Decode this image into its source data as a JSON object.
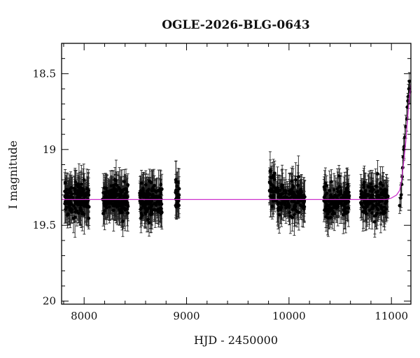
{
  "chart_data": {
    "type": "scatter",
    "title": "OGLE-2026-BLG-0643",
    "xlabel": "HJD - 2450000",
    "ylabel": "I magnitude",
    "xlim": [
      7780,
      11190
    ],
    "ylim": [
      20.02,
      18.3
    ],
    "y_inverted": true,
    "grid": false,
    "x_ticks": [
      8000,
      9000,
      10000,
      11000
    ],
    "x_tick_labels": [
      "8000",
      "9000",
      "10000",
      "11000"
    ],
    "y_ticks": [
      18.5,
      19,
      19.5,
      20
    ],
    "y_tick_labels": [
      "18.5",
      "19",
      "19.5",
      "20"
    ],
    "colors": {
      "points": "#000000",
      "model": "#cc33cc"
    },
    "seasons": [
      {
        "x_range": [
          7810,
          8050
        ],
        "center_mag": 19.33,
        "approx_points": 160
      },
      {
        "x_range": [
          8180,
          8430
        ],
        "center_mag": 19.32,
        "approx_points": 160
      },
      {
        "x_range": [
          8540,
          8760
        ],
        "center_mag": 19.33,
        "approx_points": 140
      },
      {
        "x_range": [
          8890,
          8930
        ],
        "center_mag": 19.33,
        "approx_points": 25
      },
      {
        "x_range": [
          9810,
          9870
        ],
        "center_mag": 19.25,
        "approx_points": 40
      },
      {
        "x_range": [
          9880,
          10160
        ],
        "center_mag": 19.33,
        "approx_points": 140
      },
      {
        "x_range": [
          10340,
          10590
        ],
        "center_mag": 19.34,
        "approx_points": 130
      },
      {
        "x_range": [
          10700,
          10970
        ],
        "center_mag": 19.33,
        "approx_points": 150
      }
    ],
    "rising_points": [
      {
        "x": 11080,
        "y": 19.37
      },
      {
        "x": 11090,
        "y": 19.32
      },
      {
        "x": 11095,
        "y": 19.3
      },
      {
        "x": 11100,
        "y": 19.23
      },
      {
        "x": 11105,
        "y": 19.18
      },
      {
        "x": 11110,
        "y": 19.12
      },
      {
        "x": 11115,
        "y": 19.05
      },
      {
        "x": 11120,
        "y": 19.0
      },
      {
        "x": 11125,
        "y": 18.98
      },
      {
        "x": 11130,
        "y": 18.92
      },
      {
        "x": 11140,
        "y": 18.85
      },
      {
        "x": 11150,
        "y": 18.8
      },
      {
        "x": 11155,
        "y": 18.72
      },
      {
        "x": 11160,
        "y": 18.68
      },
      {
        "x": 11165,
        "y": 18.65
      },
      {
        "x": 11170,
        "y": 18.6
      },
      {
        "x": 11175,
        "y": 18.55
      },
      {
        "x": 11180,
        "y": 18.62
      }
    ],
    "model_curve": {
      "baseline_mag": 19.33,
      "points": [
        {
          "x": 7780,
          "y": 19.33
        },
        {
          "x": 10950,
          "y": 19.33
        },
        {
          "x": 11000,
          "y": 19.32
        },
        {
          "x": 11050,
          "y": 19.3
        },
        {
          "x": 11080,
          "y": 19.27
        },
        {
          "x": 11100,
          "y": 19.2
        },
        {
          "x": 11120,
          "y": 19.08
        },
        {
          "x": 11140,
          "y": 18.95
        },
        {
          "x": 11160,
          "y": 18.78
        },
        {
          "x": 11175,
          "y": 18.66
        },
        {
          "x": 11190,
          "y": 18.57
        }
      ]
    }
  }
}
